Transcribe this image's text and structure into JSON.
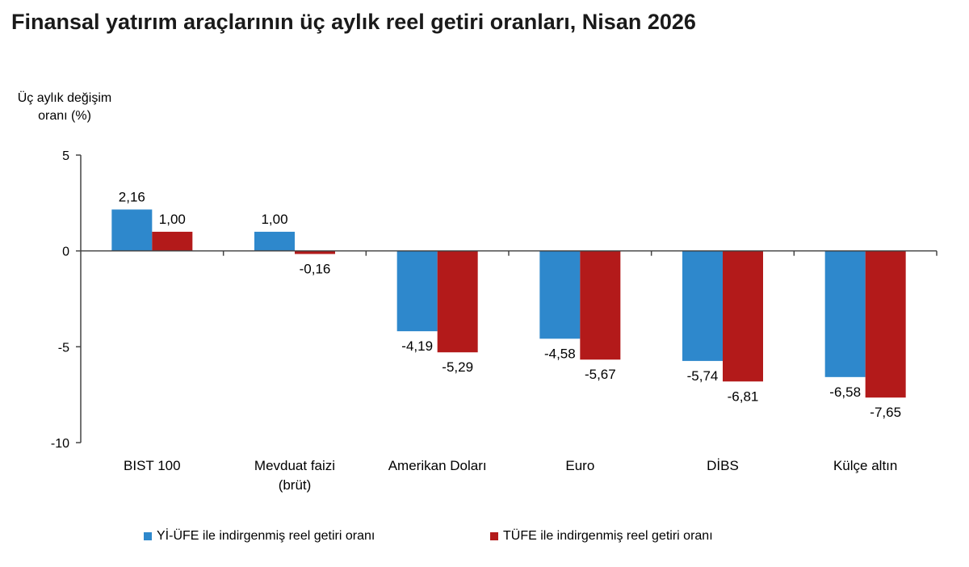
{
  "colors": {
    "series1": "#2E88CC",
    "series2": "#B31A1A",
    "axis": "#444444"
  },
  "chart_data": {
    "type": "bar",
    "title": "Finansal yatırım araçlarının üç aylık reel getiri oranları, Nisan 2026",
    "ylabel": [
      "Üç aylık değişim",
      "oranı (%)"
    ],
    "xlabel": "",
    "ylim": [
      -10,
      5
    ],
    "yticks": [
      5,
      0,
      -5,
      -10
    ],
    "categories": [
      [
        "BIST 100"
      ],
      [
        "Mevduat faizi",
        "(brüt)"
      ],
      [
        "Amerikan Doları"
      ],
      [
        "Euro"
      ],
      [
        "DİBS"
      ],
      [
        "Külçe altın"
      ]
    ],
    "series": [
      {
        "name": "Yİ-ÜFE ile indirgenmiş reel getiri oranı",
        "values": [
          2.16,
          1.0,
          -4.19,
          -4.58,
          -5.74,
          -6.58
        ],
        "labels": [
          "2,16",
          "1,00",
          "-4,19",
          "-4,58",
          "-5,74",
          "-6,58"
        ]
      },
      {
        "name": "TÜFE ile indirgenmiş reel getiri oranı",
        "values": [
          1.0,
          -0.16,
          -5.29,
          -5.67,
          -6.81,
          -7.65
        ],
        "labels": [
          "1,00",
          "-0,16",
          "-5,29",
          "-5,67",
          "-6,81",
          "-7,65"
        ]
      }
    ],
    "grid": false,
    "legend": "bottom"
  }
}
